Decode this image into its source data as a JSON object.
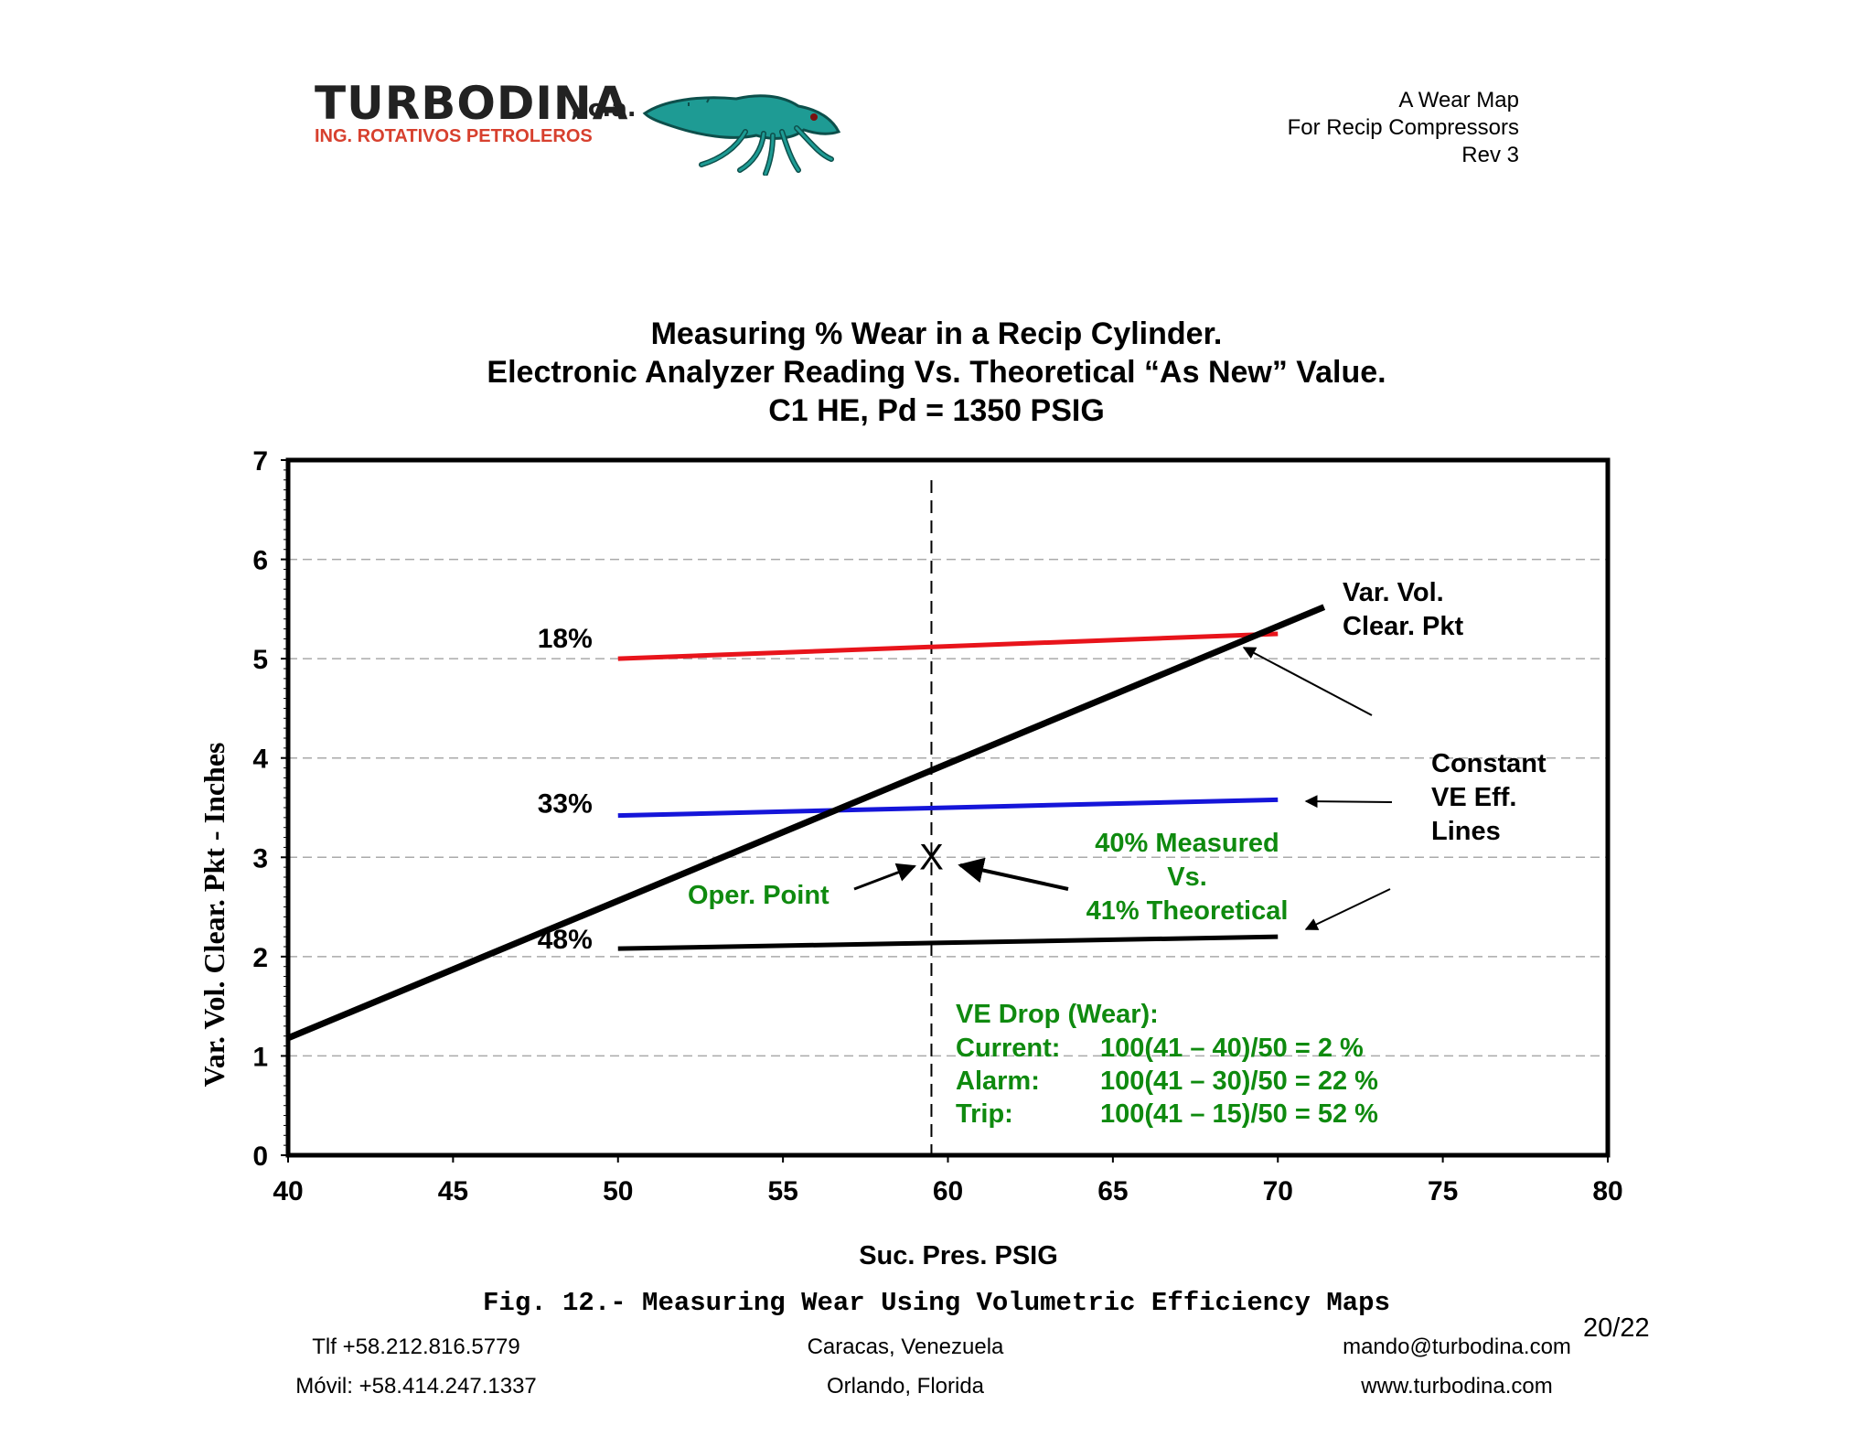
{
  "header": {
    "logo_name": "TURBODINA",
    "logo_suffix": ", c.a.",
    "logo_tagline": "ING. ROTATIVOS PETROLEROS",
    "doc_lines": [
      "A Wear Map",
      "For Recip Compressors",
      "Rev 3"
    ]
  },
  "chart_data": {
    "type": "line",
    "title": [
      "Measuring % Wear in a Recip Cylinder.",
      "Electronic Analyzer Reading Vs. Theoretical “As New” Value.",
      "C1 HE, Pd = 1350 PSIG"
    ],
    "xlabel": "Suc. Pres. PSIG",
    "ylabel": "Var. Vol. Clear. Pkt - Inches",
    "xlim": [
      40,
      80
    ],
    "ylim": [
      0,
      7
    ],
    "x_ticks": [
      "40",
      "45",
      "50",
      "55",
      "60",
      "65",
      "70",
      "75",
      "80"
    ],
    "y_ticks": [
      "0",
      "1",
      "2",
      "3",
      "4",
      "5",
      "6",
      "7"
    ],
    "grid": "horizontal-dashed",
    "series": [
      {
        "label": "18%",
        "color": "#e8141b",
        "points": [
          [
            50,
            5.0
          ],
          [
            70,
            5.25
          ]
        ]
      },
      {
        "label": "33%",
        "color": "#1515d9",
        "points": [
          [
            50,
            3.42
          ],
          [
            70,
            3.58
          ]
        ]
      },
      {
        "label": "48%",
        "color": "#000000",
        "points": [
          [
            50,
            2.08
          ],
          [
            70,
            2.2
          ]
        ]
      },
      {
        "label": "Var. Vol. Clear. Pkt",
        "color": "#000000",
        "points": [
          [
            40,
            1.18
          ],
          [
            71.4,
            5.52
          ]
        ]
      }
    ],
    "operating_point": {
      "x": 59.5,
      "y": 3.0,
      "marker": "X"
    },
    "vertical_reference_x": 59.5,
    "annotations": {
      "var_vol": [
        "Var. Vol.",
        "Clear. Pkt"
      ],
      "constant": [
        "Constant",
        "VE Eff.",
        "Lines"
      ],
      "oper_point": "Oper. Point",
      "measured": [
        "40% Measured",
        "Vs.",
        "41% Theoretical"
      ],
      "ve_drop_title": "VE Drop (Wear):",
      "ve_drop_rows": [
        {
          "label": "Current:",
          "formula": "100(41 – 40)/50 =  2 %"
        },
        {
          "label": "Alarm:",
          "formula": "100(41 – 30)/50 = 22 %"
        },
        {
          "label": "Trip:",
          "formula": "100(41 – 15)/50 = 52 %"
        }
      ]
    },
    "colors": {
      "green_text": "#0f8a0f",
      "red": "#e8141b",
      "blue": "#1515d9"
    }
  },
  "caption": "Fig. 12.- Measuring Wear Using Volumetric Efficiency Maps",
  "page_number": "20/22",
  "footer": {
    "phone": "Tlf +58.212.816.5779",
    "mobile": "Móvil: +58.414.247.1337",
    "city1": "Caracas, Venezuela",
    "city2": "Orlando, Florida",
    "email": "mando@turbodina.com",
    "web": "www.turbodina.com"
  }
}
